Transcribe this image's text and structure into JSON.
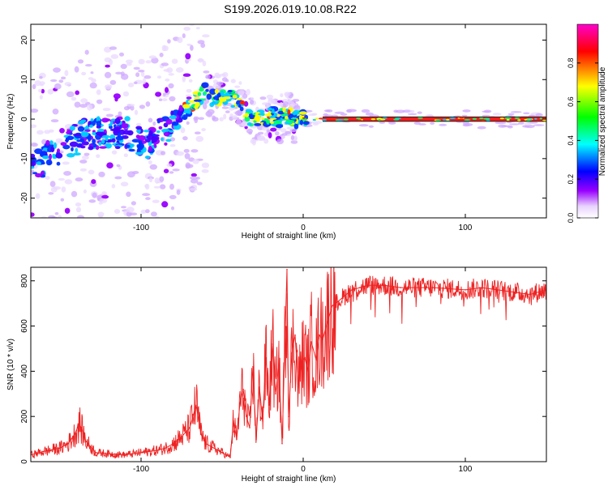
{
  "page": {
    "title": "S199.2026.019.10.08.R22"
  },
  "chart_data": [
    {
      "type": "heatmap",
      "title": "S199.2026.019.10.08.R22",
      "xlabel": "Height of straight line (km)",
      "ylabel": "Frequency (Hz)",
      "xlim": [
        -168,
        150
      ],
      "ylim": [
        -25,
        24
      ],
      "x_ticks": [
        -100,
        0,
        100
      ],
      "x_tick_labels": [
        "-100",
        "0",
        "100"
      ],
      "y_ticks": [
        -20,
        -10,
        0,
        10,
        20
      ],
      "y_tick_labels": [
        "-20",
        "-10",
        "0",
        "10",
        "20"
      ],
      "frequency_trace": {
        "x": [
          -165,
          -150,
          -135,
          -120,
          -105,
          -95,
          -85,
          -75,
          -68,
          -60,
          -55,
          -48,
          -42,
          -38,
          -34,
          -30,
          -27,
          -24,
          -20,
          -15,
          -10,
          -5,
          0,
          10,
          20,
          60,
          100,
          150
        ],
        "y": [
          -12,
          -7,
          -4,
          -3,
          -4,
          -6,
          -3,
          1,
          4,
          7,
          5,
          6,
          5,
          3,
          1,
          -1,
          1,
          0,
          1,
          0,
          1,
          0,
          0,
          0,
          0,
          0,
          0,
          0
        ]
      },
      "colorbar": {
        "label": "Normalized spectral amplitude",
        "range": [
          0,
          1
        ],
        "ticks": [
          0.0,
          0.2,
          0.4,
          0.6,
          0.8
        ],
        "tick_labels": [
          "0.0",
          "0.2",
          "0.4",
          "0.6",
          "0.8"
        ],
        "colors": [
          "#ffffff",
          "#9900ff",
          "#0000ff",
          "#00ffff",
          "#00ff00",
          "#ffff00",
          "#ff0000",
          "#ff00cc"
        ]
      },
      "grid": false
    },
    {
      "type": "line",
      "xlabel": "Height of straight line (km)",
      "ylabel": "SNR (10 * v/v)",
      "xlim": [
        -168,
        150
      ],
      "ylim": [
        0,
        860
      ],
      "x_ticks": [
        -100,
        0,
        100
      ],
      "x_tick_labels": [
        "-100",
        "0",
        "100"
      ],
      "y_ticks": [
        0,
        200,
        400,
        600,
        800
      ],
      "y_tick_labels": [
        "0",
        "200",
        "400",
        "600",
        "800"
      ],
      "series": [
        {
          "name": "SNR",
          "color": "#ee2222",
          "x": [
            -168,
            -160,
            -150,
            -145,
            -141,
            -138,
            -134,
            -128,
            -120,
            -110,
            -100,
            -95,
            -90,
            -85,
            -80,
            -75,
            -70,
            -66,
            -63,
            -60,
            -55,
            -50,
            -45,
            -43,
            -41,
            -39,
            -37,
            -35,
            -33,
            -31,
            -29,
            -27,
            -25,
            -23,
            -21,
            -19,
            -17,
            -15,
            -13,
            -11,
            -10,
            -9,
            -7,
            -5,
            -3,
            -1,
            1,
            3,
            5,
            8,
            10,
            12,
            15,
            18,
            20,
            25,
            30,
            35,
            40,
            50,
            60,
            80,
            100,
            110,
            120,
            130,
            140,
            150
          ],
          "y": [
            30,
            45,
            60,
            80,
            120,
            170,
            90,
            40,
            35,
            30,
            40,
            45,
            50,
            60,
            80,
            110,
            150,
            250,
            120,
            80,
            60,
            40,
            20,
            180,
            100,
            260,
            320,
            200,
            150,
            420,
            100,
            330,
            180,
            460,
            250,
            520,
            300,
            430,
            80,
            600,
            850,
            200,
            480,
            560,
            330,
            440,
            460,
            400,
            530,
            450,
            560,
            540,
            620,
            690,
            700,
            730,
            760,
            770,
            780,
            780,
            770,
            770,
            760,
            770,
            760,
            750,
            740,
            760
          ]
        }
      ],
      "grid": false
    }
  ]
}
